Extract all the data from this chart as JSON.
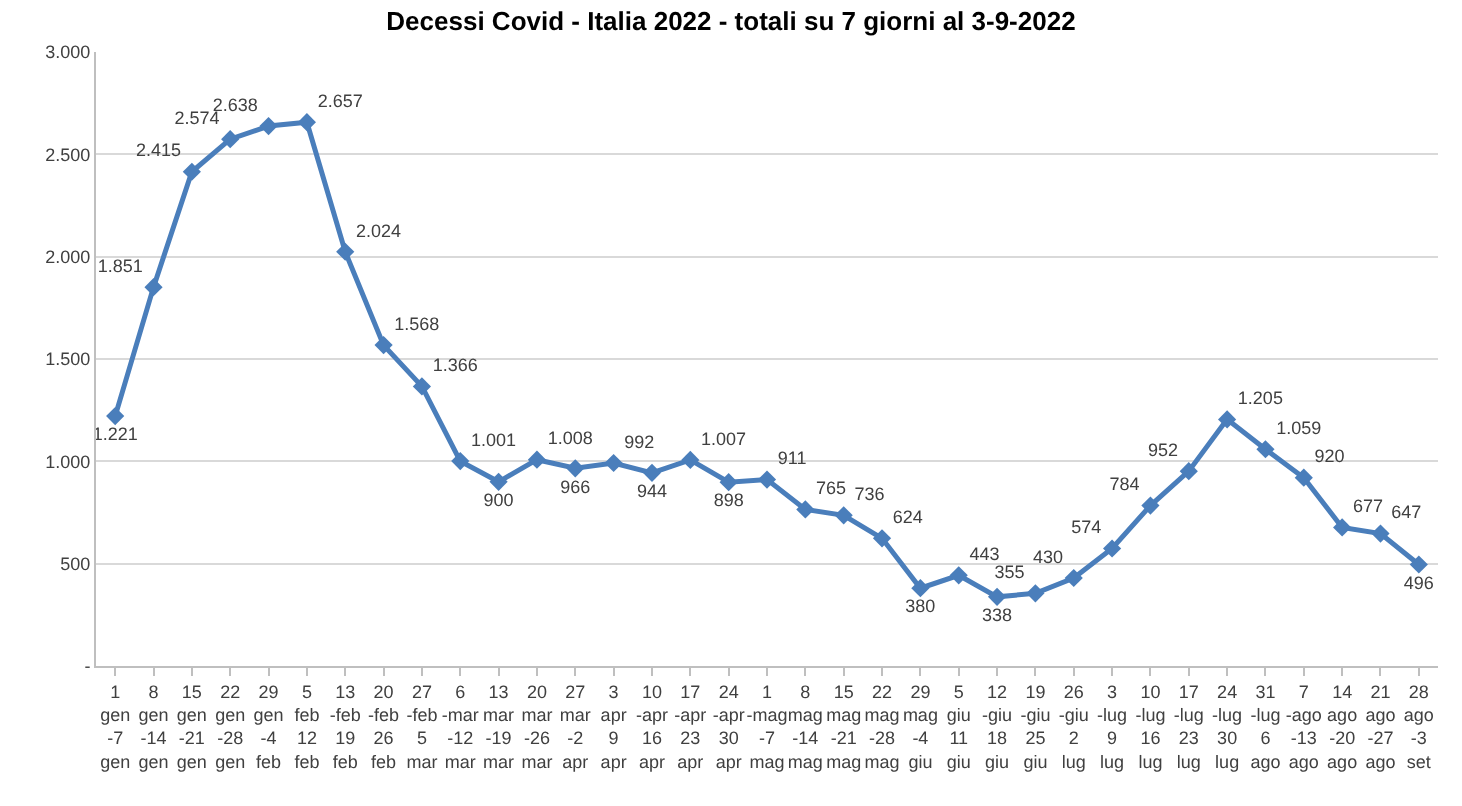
{
  "chart_data": {
    "type": "line",
    "title": "Decessi Covid - Italia 2022 - totali su 7 giorni al 3-9-2022",
    "categories": [
      "1 gen -7 gen",
      "8 gen -14 gen",
      "15 gen -21 gen",
      "22 gen -28 gen",
      "29 gen -4 feb",
      "5 feb 12 feb",
      "13 -feb 19 feb",
      "20 -feb 26 feb",
      "27 -feb 5 mar",
      "6 -mar -12 mar",
      "13 mar -19 mar",
      "20 mar -26 mar",
      "27 mar -2 apr",
      "3 apr 9 apr",
      "10 -apr 16 apr",
      "17 -apr 23 apr",
      "24 -apr 30 apr",
      "1 -mag -7 mag",
      "8 mag -14 mag",
      "15 mag -21 mag",
      "22 mag -28 mag",
      "29 mag -4 giu",
      "5 giu 11 giu",
      "12 -giu 18 giu",
      "19 -giu 25 giu",
      "26 -giu 2 lug",
      "3 -lug 9 lug",
      "10 -lug 16 lug",
      "17 -lug 23 lug",
      "24 -lug 30 lug",
      "31 -lug 6 ago",
      "7 -ago -13 ago",
      "14 ago -20 ago",
      "21 ago -27 ago",
      "28 ago -3 set"
    ],
    "series": [
      {
        "color": "#4a7ebb",
        "values": [
          1221,
          1851,
          2415,
          2574,
          2638,
          2657,
          2024,
          1568,
          1366,
          1001,
          900,
          1008,
          966,
          992,
          944,
          1007,
          898,
          911,
          765,
          736,
          624,
          380,
          443,
          338,
          355,
          430,
          574,
          784,
          952,
          1205,
          1059,
          920,
          677,
          647,
          496
        ],
        "value_labels": [
          "1.221",
          "1.851",
          "2.415",
          "2.574",
          "2.638",
          "2.657",
          "2.024",
          "1.568",
          "1.366",
          "1.001",
          "900",
          "1.008",
          "966",
          "992",
          "944",
          "1.007",
          "898",
          "911",
          "765",
          "736",
          "624",
          "380",
          "443",
          "338",
          "355",
          "430",
          "574",
          "784",
          "952",
          "1.205",
          "1.059",
          "920",
          "677",
          "647",
          "496"
        ]
      }
    ],
    "ylim": [
      0,
      3000
    ],
    "yticks": [
      {
        "value": 0,
        "label": "-"
      },
      500,
      {
        "value": 1000,
        "label": "1.000"
      },
      {
        "value": 1500,
        "label": "1.500"
      },
      {
        "value": 2000,
        "label": "2.000"
      },
      {
        "value": 2500,
        "label": "2.500"
      },
      {
        "value": 3000,
        "label": "3.000"
      }
    ],
    "grid": "y",
    "marker": "diamond",
    "line_style": "solid"
  }
}
